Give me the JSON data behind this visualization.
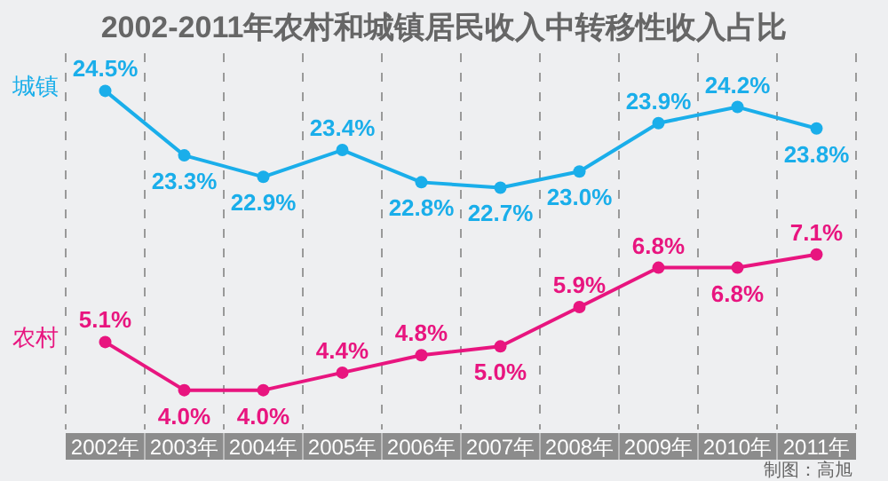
{
  "chart_data": {
    "type": "line",
    "title": "2002-2011年农村和城镇居民收入中转移性收入占比",
    "categories": [
      "2002年",
      "2003年",
      "2004年",
      "2005年",
      "2006年",
      "2007年",
      "2008年",
      "2009年",
      "2010年",
      "2011年"
    ],
    "series": [
      {
        "name": "城镇",
        "color": "#1aaeea",
        "axis": "y2",
        "values": [
          24.5,
          23.3,
          22.9,
          23.4,
          22.8,
          22.7,
          23.0,
          23.9,
          24.2,
          23.8
        ],
        "value_labels": [
          "24.5%",
          "23.3%",
          "22.9%",
          "23.4%",
          "22.8%",
          "22.7%",
          "23.0%",
          "23.9%",
          "24.2%",
          "23.8%"
        ]
      },
      {
        "name": "农村",
        "color": "#e8157f",
        "values": [
          5.1,
          4.0,
          4.0,
          4.4,
          4.8,
          5.0,
          5.9,
          6.8,
          6.8,
          7.1
        ],
        "value_labels": [
          "5.1%",
          "4.0%",
          "4.0%",
          "4.4%",
          "4.8%",
          "5.0%",
          "5.9%",
          "6.8%",
          "6.8%",
          "7.1%"
        ]
      }
    ],
    "ylim": [
      3.1,
      11.7
    ],
    "y2lim": [
      18.2,
      25.2
    ],
    "tick_labels": "x",
    "marker": "circle",
    "line_style": "solid",
    "grid": "x",
    "legend": "left",
    "annotations": [
      "制图：高旭"
    ]
  }
}
